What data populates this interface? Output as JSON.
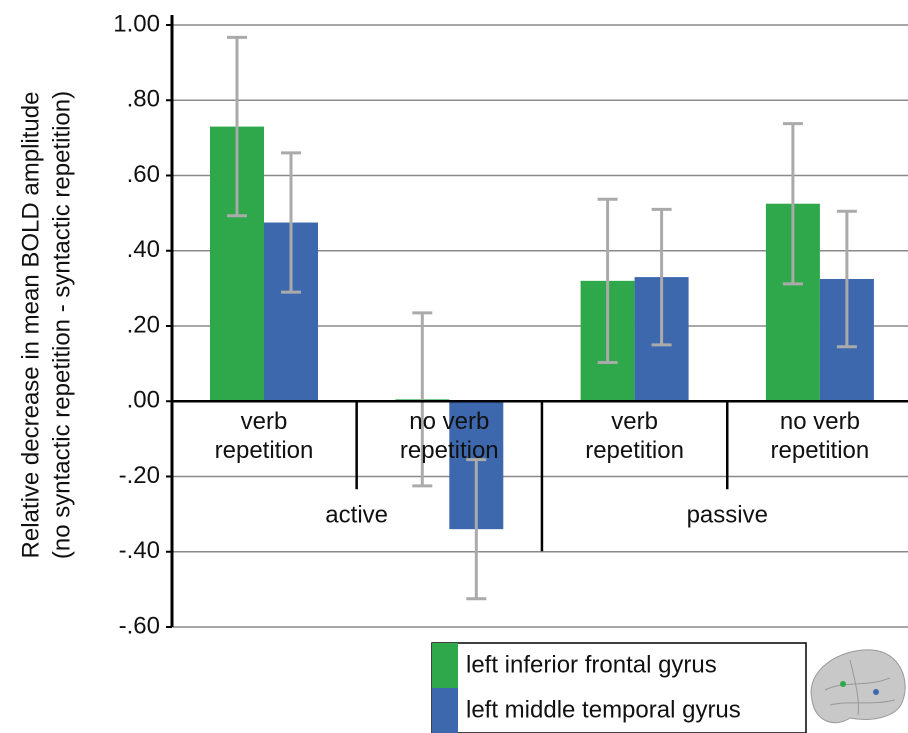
{
  "chart_data": {
    "type": "bar",
    "ylabel": [
      "Relative decrease in mean BOLD amplitude",
      "(no syntactic repetition - syntactic repetition)"
    ],
    "categories": [
      "verb repetition",
      "no verb repetition",
      "verb repetition",
      "no verb repetition"
    ],
    "group_labels": [
      "active",
      "passive"
    ],
    "series": [
      {
        "name": "left inferior frontal gyrus",
        "color": "#2ea84a",
        "values": [
          0.73,
          0.005,
          0.32,
          0.525
        ],
        "errors": [
          0.237,
          0.23,
          0.217,
          0.213
        ]
      },
      {
        "name": "left middle temporal gyrus",
        "color": "#3d68ad",
        "values": [
          0.475,
          -0.34,
          0.33,
          0.325
        ],
        "errors": [
          0.185,
          0.185,
          0.18,
          0.18
        ]
      }
    ],
    "error_color": "#aaaaaa",
    "ylim": [
      -0.6,
      1.0
    ],
    "yticks": [
      {
        "value": -0.6,
        "label": "-.60"
      },
      {
        "value": -0.4,
        "label": "-.40"
      },
      {
        "value": -0.2,
        "label": "-.20"
      },
      {
        "value": 0,
        "label": ".00"
      },
      {
        "value": 0.2,
        "label": ".20"
      },
      {
        "value": 0.4,
        "label": ".40"
      },
      {
        "value": 0.6,
        "label": ".60"
      },
      {
        "value": 0.8,
        "label": ".80"
      },
      {
        "value": 1.0,
        "label": "1.00"
      }
    ],
    "grid": true
  }
}
